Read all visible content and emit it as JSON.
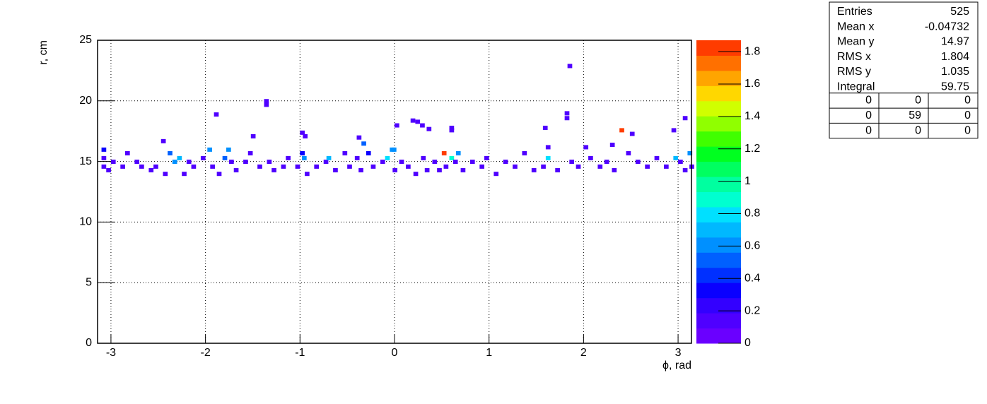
{
  "chart_data": {
    "type": "heatmap",
    "x_label": "ϕ, rad",
    "y_label": "r, cm",
    "xlim": [
      -3.1416,
      3.1416
    ],
    "ylim": [
      0,
      25
    ],
    "xticks": [
      -3,
      -2,
      -1,
      0,
      1,
      2,
      3
    ],
    "yticks": [
      0,
      5,
      10,
      15,
      20,
      25
    ],
    "zlim": [
      0,
      1.87
    ],
    "zticks": [
      0,
      0.2,
      0.4,
      0.6,
      0.8,
      1,
      1.2,
      1.4,
      1.6,
      1.8
    ],
    "grid": true,
    "bin_width": [
      0.05,
      0.35
    ],
    "palette": [
      "#6a00ff",
      "#4f00ff",
      "#3300ff",
      "#0a00ff",
      "#0030ff",
      "#0060ff",
      "#0090ff",
      "#00b8ff",
      "#00e0ff",
      "#00ffd0",
      "#00ffa0",
      "#00ff60",
      "#00ff20",
      "#40ff00",
      "#90ff00",
      "#d0ff00",
      "#ffd700",
      "#ffa500",
      "#ff7000",
      "#ff3c00"
    ],
    "x": [
      -3.1,
      -3.1,
      -3.1,
      -3.05,
      -3.0,
      -2.9,
      -2.85,
      -2.75,
      -2.7,
      -2.6,
      -2.55,
      -2.45,
      -2.4,
      -2.35,
      -2.3,
      -2.25,
      -2.2,
      -2.15,
      -2.05,
      -1.98,
      -1.95,
      -1.88,
      -1.82,
      -1.78,
      -1.75,
      -1.7,
      -1.6,
      -1.55,
      -1.45,
      -1.35,
      -1.3,
      -1.2,
      -1.15,
      -1.05,
      -1.0,
      -0.98,
      -0.95,
      -0.85,
      -0.75,
      -0.72,
      -0.65,
      -0.55,
      -0.5,
      -0.42,
      -0.38,
      -0.3,
      -0.25,
      -0.15,
      -0.1,
      -0.05,
      -0.02,
      0.05,
      0.12,
      0.2,
      0.28,
      0.32,
      0.4,
      0.45,
      0.5,
      0.52,
      0.58,
      0.62,
      0.65,
      0.7,
      0.8,
      0.9,
      0.95,
      1.05,
      1.15,
      1.25,
      1.35,
      1.45,
      1.55,
      1.6,
      1.7,
      1.85,
      1.92,
      2.05,
      2.15,
      2.22,
      2.3,
      2.45,
      2.55,
      2.65,
      2.75,
      2.85,
      2.95,
      3.0,
      3.05,
      3.1,
      3.12,
      1.83,
      -1.38,
      -1.38,
      -1.91,
      1.8,
      1.8,
      0.17,
      0.22,
      0.27,
      0.34,
      0.0,
      0.58,
      0.58,
      1.57,
      2.38,
      2.49,
      3.05,
      2.93,
      -1.0,
      -0.97,
      -1.52,
      -0.4,
      -0.35,
      -2.47,
      2.28,
      -0.03,
      1.6,
      2.0
    ],
    "y": [
      15.8,
      15.1,
      14.4,
      14.1,
      14.8,
      14.4,
      15.5,
      14.8,
      14.4,
      14.1,
      14.4,
      13.8,
      15.5,
      14.8,
      15.1,
      13.8,
      14.8,
      14.4,
      15.1,
      15.8,
      14.4,
      13.8,
      15.1,
      15.8,
      14.8,
      14.1,
      14.8,
      15.5,
      14.4,
      14.8,
      14.1,
      14.4,
      15.1,
      14.4,
      15.5,
      15.1,
      13.8,
      14.4,
      14.8,
      15.1,
      14.1,
      15.5,
      14.4,
      15.1,
      14.1,
      15.5,
      14.4,
      14.8,
      15.1,
      15.8,
      14.1,
      14.8,
      14.4,
      13.8,
      15.1,
      14.1,
      14.8,
      14.1,
      15.5,
      14.4,
      15.1,
      14.8,
      15.5,
      14.1,
      14.8,
      14.4,
      15.1,
      13.8,
      14.8,
      14.4,
      15.5,
      14.1,
      14.4,
      15.1,
      14.1,
      14.8,
      14.4,
      15.1,
      14.4,
      14.8,
      14.1,
      15.5,
      14.8,
      14.4,
      15.1,
      14.4,
      15.1,
      14.8,
      14.1,
      15.5,
      14.4,
      22.7,
      19.8,
      19.5,
      18.7,
      18.8,
      18.4,
      18.2,
      18.1,
      17.8,
      17.5,
      17.8,
      17.6,
      17.4,
      17.6,
      17.4,
      17.1,
      18.4,
      17.4,
      17.2,
      16.9,
      16.9,
      16.8,
      16.3,
      16.5,
      16.2,
      15.8,
      16.0,
      16.0
    ],
    "values": [
      0.3,
      0.1,
      0.1,
      0.1,
      0.1,
      0.1,
      0.1,
      0.1,
      0.1,
      0.1,
      0.1,
      0.1,
      0.5,
      0.6,
      0.7,
      0.1,
      0.1,
      0.1,
      0.1,
      0.6,
      0.1,
      0.1,
      0.5,
      0.6,
      0.1,
      0.1,
      0.1,
      0.1,
      0.1,
      0.1,
      0.1,
      0.1,
      0.1,
      0.1,
      0.3,
      0.6,
      0.1,
      0.1,
      0.1,
      0.7,
      0.1,
      0.1,
      0.1,
      0.1,
      0.1,
      0.3,
      0.1,
      0.1,
      0.8,
      0.6,
      0.1,
      0.1,
      0.1,
      0.1,
      0.1,
      0.1,
      0.1,
      0.1,
      1.85,
      0.1,
      0.9,
      0.1,
      0.6,
      0.1,
      0.1,
      0.1,
      0.1,
      0.1,
      0.1,
      0.1,
      0.1,
      0.1,
      0.1,
      0.8,
      0.1,
      0.1,
      0.1,
      0.1,
      0.1,
      0.1,
      0.1,
      0.1,
      0.1,
      0.1,
      0.1,
      0.1,
      0.7,
      0.1,
      0.1,
      0.6,
      0.1,
      0.1,
      0.1,
      0.1,
      0.1,
      0.1,
      0.1,
      0.1,
      0.1,
      0.1,
      0.1,
      0.1,
      0.1,
      0.1,
      0.1,
      1.85,
      0.1,
      0.1,
      0.1,
      0.1,
      0.1,
      0.1,
      0.1,
      0.55,
      0.1,
      0.1,
      0.6,
      0.1,
      0.1
    ]
  },
  "stats": {
    "rows": [
      [
        "Entries",
        "525"
      ],
      [
        "Mean x",
        "-0.04732"
      ],
      [
        "Mean y",
        "14.97"
      ],
      [
        "RMS x",
        "1.804"
      ],
      [
        "RMS y",
        "1.035"
      ],
      [
        "Integral",
        "59.75"
      ]
    ],
    "grid": [
      [
        "0",
        "0",
        "0"
      ],
      [
        "0",
        "59",
        "0"
      ],
      [
        "0",
        "0",
        "0"
      ]
    ]
  }
}
